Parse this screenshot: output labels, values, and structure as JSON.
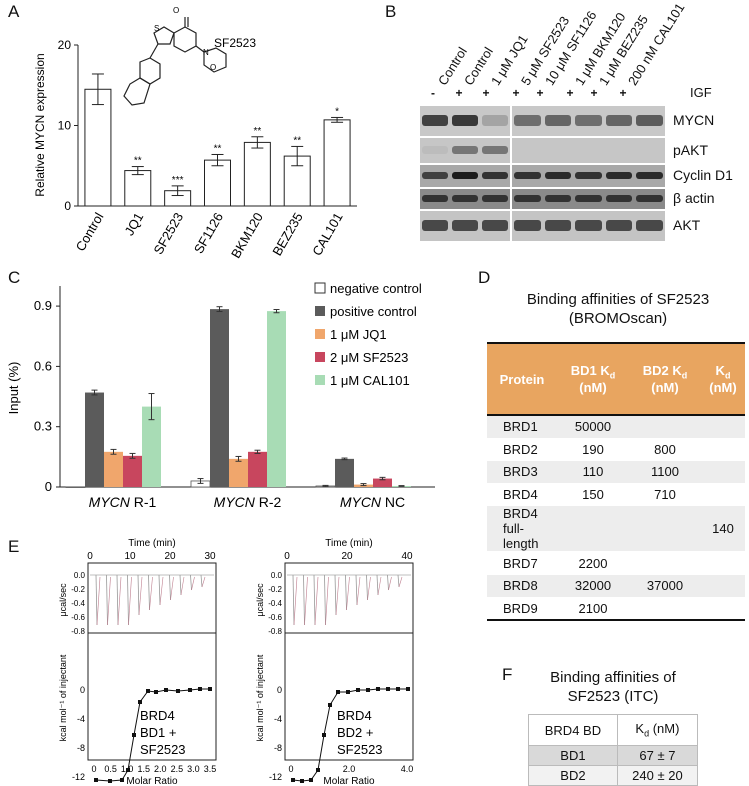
{
  "panels": {
    "A": "A",
    "B": "B",
    "C": "C",
    "D": "D",
    "E": "E",
    "F": "F"
  },
  "panelA": {
    "compound_label": "SF2523",
    "chart_data": {
      "type": "bar",
      "categories": [
        "Control",
        "JQ1",
        "SF2523",
        "SF1126",
        "BKM120",
        "BEZ235",
        "CAL101"
      ],
      "values": [
        14.5,
        4.4,
        1.9,
        5.7,
        7.9,
        6.2,
        10.7
      ],
      "errors": [
        1.9,
        0.5,
        0.6,
        0.7,
        0.7,
        1.2,
        0.3
      ],
      "significance": [
        "",
        "**",
        "***",
        "**",
        "**",
        "**",
        "*"
      ],
      "ylabel": "Relative MYCN expression",
      "ylim": [
        0,
        20
      ],
      "yticks": [
        "0",
        "10",
        "20"
      ]
    }
  },
  "panelB": {
    "lanes": [
      "Control",
      "Control",
      "1 μM JQ1",
      "5 μM SF2523",
      "10 μM SF1126",
      "1 μM BKM120",
      "1 μM BEZ235",
      "200 nM CAL101"
    ],
    "igf_signs": [
      "-",
      "+",
      "+",
      "+",
      "+",
      "+",
      "+",
      "+"
    ],
    "igf_label": "IGF",
    "blot_labels": [
      "MYCN",
      "pAKT",
      "Cyclin D1",
      "β actin",
      "AKT"
    ]
  },
  "panelC": {
    "chart_data": {
      "type": "bar",
      "categories": [
        "MYCN R-1",
        "MYCN R-2",
        "MYCN NC"
      ],
      "category_italic": "MYCN",
      "category_suffix": [
        " R-1",
        " R-2",
        " NC"
      ],
      "series": [
        {
          "name": "negative control",
          "color": "#ffffff",
          "values": [
            0.0,
            0.03,
            0.005
          ],
          "errors": [
            0,
            0.012,
            0.003
          ]
        },
        {
          "name": "positive control",
          "color": "#5b5b5b",
          "values": [
            0.47,
            0.885,
            0.14
          ],
          "errors": [
            0.012,
            0.012,
            0.004
          ]
        },
        {
          "name": "1 μM JQ1",
          "color": "#f0a66c",
          "values": [
            0.175,
            0.14,
            0.012
          ],
          "errors": [
            0.012,
            0.012,
            0.005
          ]
        },
        {
          "name": "2 μM SF2523",
          "color": "#c8465e",
          "values": [
            0.155,
            0.175,
            0.042
          ],
          "errors": [
            0.012,
            0.008,
            0.006
          ]
        },
        {
          "name": "1 μM CAL101",
          "color": "#a8dcb5",
          "values": [
            0.4,
            0.875,
            0.005
          ],
          "errors": [
            0.065,
            0.008,
            0.002
          ]
        }
      ],
      "ylabel": "Input (%)",
      "ylim": [
        0,
        1.0
      ],
      "yticks": [
        "0",
        "0.3",
        "0.6",
        "0.9"
      ]
    }
  },
  "panelD": {
    "title_line1": "Binding affinities of SF2523",
    "title_line2": "(BROMOscan)",
    "headers": [
      "Protein",
      "BD1 K",
      "BD2 K",
      "K"
    ],
    "header_sub": "d",
    "header_unit": "(nM)",
    "rows": [
      [
        "BRD1",
        "50000",
        "",
        ""
      ],
      [
        "BRD2",
        "190",
        "800",
        ""
      ],
      [
        "BRD3",
        "110",
        "1100",
        ""
      ],
      [
        "BRD4",
        "150",
        "710",
        ""
      ],
      [
        "BRD4 full-length",
        "",
        "",
        "140"
      ],
      [
        "BRD7",
        "2200",
        "",
        ""
      ],
      [
        "BRD8",
        "32000",
        "37000",
        ""
      ],
      [
        "BRD9",
        "2100",
        "",
        ""
      ]
    ]
  },
  "panelE": {
    "plots": [
      {
        "xlabel_top": "Time (min)",
        "xticks_top": [
          "0",
          "10",
          "20",
          "30"
        ],
        "label_lines": [
          "BRD4",
          "BD1 +",
          "SF2523"
        ],
        "xticks_bottom": [
          "0",
          "0.5",
          "1.0",
          "1.5",
          "2.0",
          "2.5",
          "3.0",
          "3.5"
        ]
      },
      {
        "xlabel_top": "Time (min)",
        "xticks_top": [
          "0",
          "20",
          "40"
        ],
        "label_lines": [
          "BRD4",
          "BD2 +",
          "SF2523"
        ],
        "xticks_bottom": [
          "0",
          "2.0",
          "4.0"
        ]
      }
    ],
    "ylabel_top": "μcal/sec",
    "ylabel_bottom": "kcal mol⁻¹ of injectant",
    "xlabel_bottom": "Molar Ratio",
    "yticks_top": [
      "0.0",
      "-0.2",
      "-0.4",
      "-0.6",
      "-0.8"
    ],
    "yticks_bottom": [
      "0",
      "-4",
      "-8",
      "-12"
    ]
  },
  "panelF": {
    "title_line1": "Binding affinities of",
    "title_line2": "SF2523 (ITC)",
    "headers": [
      "BRD4 BD",
      "K"
    ],
    "header_sub": "d",
    "header_unit": " (nM)",
    "rows": [
      [
        "BD1",
        "67 ± 7"
      ],
      [
        "BD2",
        "240 ± 20"
      ]
    ]
  }
}
